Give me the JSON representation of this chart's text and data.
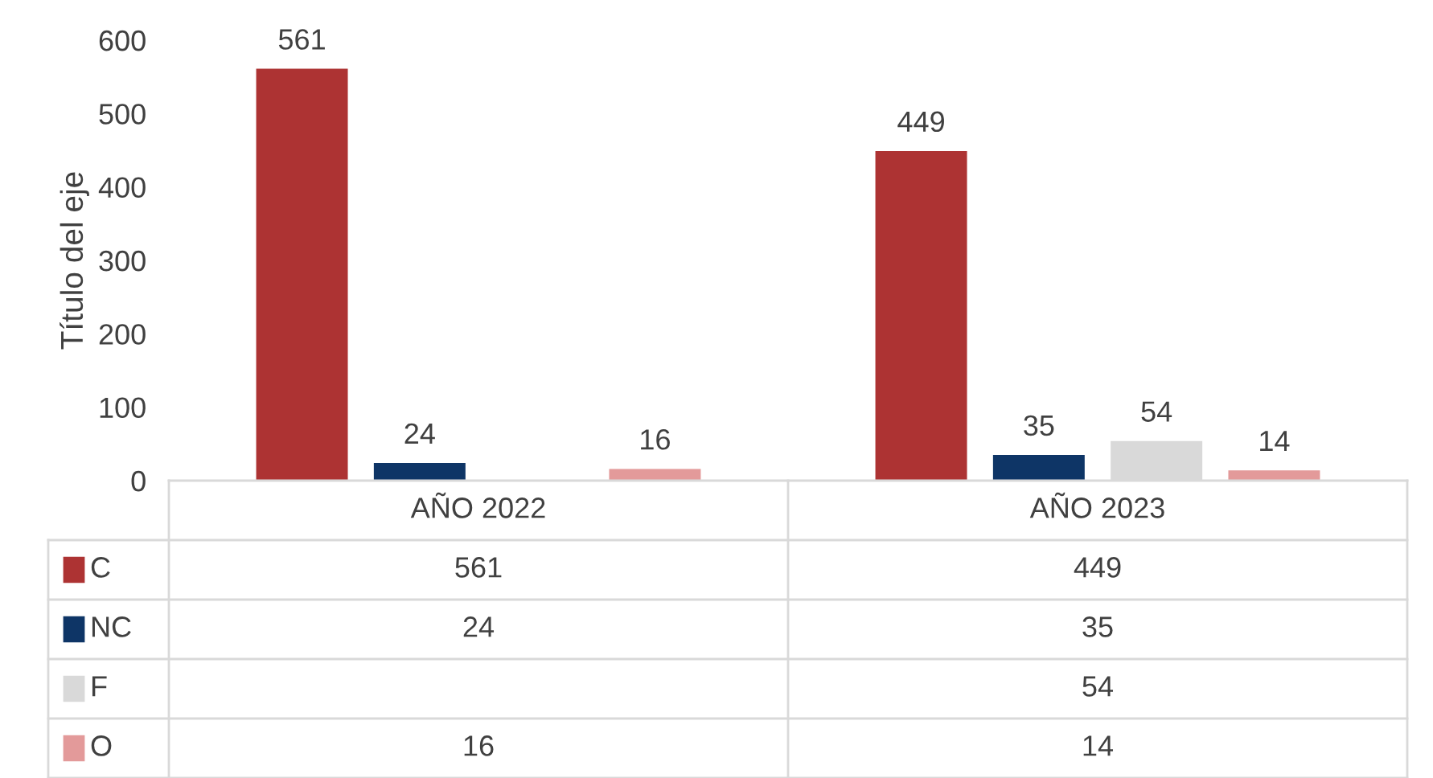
{
  "chart_data": {
    "type": "bar",
    "ylabel": "Título del eje",
    "categories": [
      "AÑO 2022",
      "AÑO 2023"
    ],
    "series": [
      {
        "name": "C",
        "color": "#ad3333",
        "values": [
          561,
          449
        ],
        "value_labels": [
          "561",
          "449"
        ]
      },
      {
        "name": "NC",
        "color": "#0e3566",
        "values": [
          24,
          35
        ],
        "value_labels": [
          "24",
          "35"
        ]
      },
      {
        "name": "F",
        "color": "#d9d9d9",
        "values": [
          null,
          54
        ],
        "value_labels": [
          null,
          "54"
        ]
      },
      {
        "name": "O",
        "color": "#e39a9a",
        "values": [
          16,
          14
        ],
        "value_labels": [
          "16",
          "14"
        ]
      }
    ],
    "ylim": [
      0,
      600
    ],
    "yticks": [
      0,
      100,
      200,
      300,
      400,
      500,
      600
    ],
    "data_labels": true,
    "legend": "bottom",
    "grid": false
  }
}
